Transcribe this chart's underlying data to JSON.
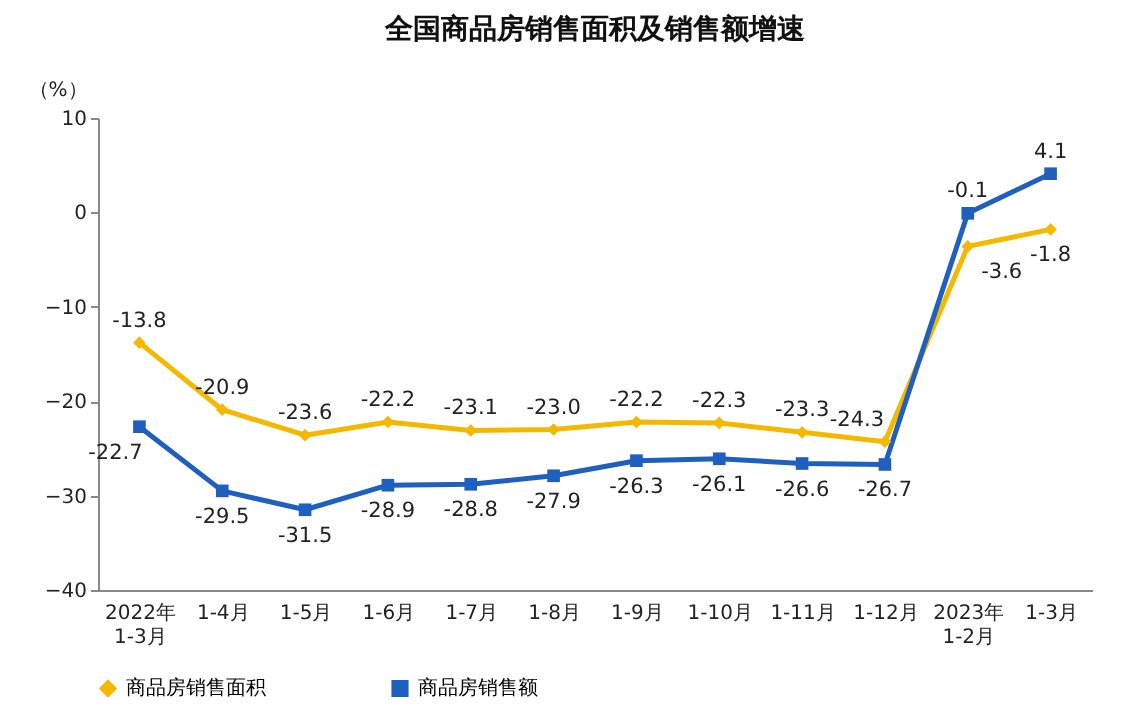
{
  "chart_data": {
    "type": "line",
    "title": "全国商品房销售面积及销售额增速",
    "ylabel": "（%）",
    "categories": [
      "2022年\n1-3月",
      "1-4月",
      "1-5月",
      "1-6月",
      "1-7月",
      "1-8月",
      "1-9月",
      "1-10月",
      "1-11月",
      "1-12月",
      "2023年\n1-2月",
      "1-3月"
    ],
    "series": [
      {
        "name": "商品房销售面积",
        "color": "#f5b800",
        "marker": "diamond",
        "values": [
          -13.8,
          -20.9,
          -23.6,
          -22.2,
          -23.1,
          -23.0,
          -22.2,
          -22.3,
          -23.3,
          -24.3,
          -3.6,
          -1.8
        ],
        "value_labels": [
          "-13.8",
          "-20.9",
          "-23.6",
          "-22.2",
          "-23.1",
          "-23.0",
          "-22.2",
          "-22.3",
          "-23.3",
          "-24.3",
          "-3.6",
          "-1.8"
        ]
      },
      {
        "name": "商品房销售额",
        "color": "#1f5fbf",
        "marker": "square",
        "values": [
          -22.7,
          -29.5,
          -31.5,
          -28.9,
          -28.8,
          -27.9,
          -26.3,
          -26.1,
          -26.6,
          -26.7,
          -0.1,
          4.1
        ],
        "value_labels": [
          "-22.7",
          "-29.5",
          "-31.5",
          "-28.9",
          "-28.8",
          "-27.9",
          "-26.3",
          "-26.1",
          "-26.6",
          "-26.7",
          "-0.1",
          "4.1"
        ]
      }
    ],
    "ylim": [
      -40,
      10
    ],
    "yticks": [
      -40,
      -30,
      -20,
      -10,
      0,
      10
    ],
    "grid": false,
    "legend": "bottom",
    "line_style": "solid"
  }
}
